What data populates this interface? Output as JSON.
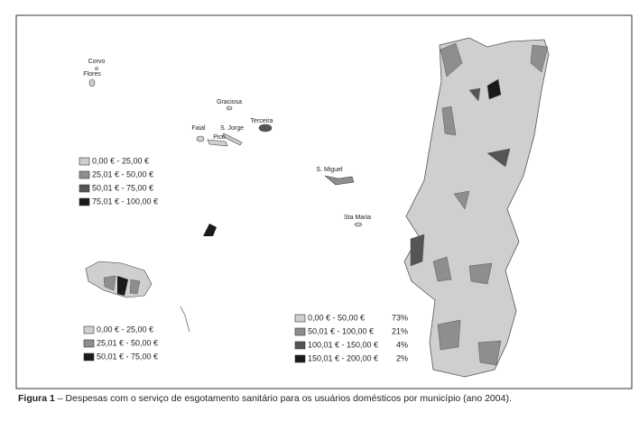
{
  "islands": [
    "Corvo",
    "Flores",
    "Graciosa",
    "Faial",
    "S. Jorge",
    "Terceira",
    "Pico",
    "S. Miguel",
    "Sta Maria"
  ],
  "azores_legend": [
    {
      "label": "0,00 € - 25,00 €",
      "color": "#cfcfcf"
    },
    {
      "label": "25,01 € - 50,00 €",
      "color": "#8e8e8e"
    },
    {
      "label": "50,01 € - 75,00 €",
      "color": "#555555"
    },
    {
      "label": "75,01 € - 100,00 €",
      "color": "#1a1a1a"
    }
  ],
  "madeira_legend": [
    {
      "label": "0,00 € - 25,00 €",
      "color": "#cfcfcf"
    },
    {
      "label": "25,01 € - 50,00 €",
      "color": "#8e8e8e"
    },
    {
      "label": "50,01 € - 75,00 €",
      "color": "#1a1a1a"
    }
  ],
  "mainland_legend": [
    {
      "label": "0,00 € - 50,00 €",
      "share": "73%",
      "color": "#cfcfcf"
    },
    {
      "label": "50,01 € - 100,00 €",
      "share": "21%",
      "color": "#8e8e8e"
    },
    {
      "label": "100,01 € - 150,00 €",
      "share": "4%",
      "color": "#555555"
    },
    {
      "label": "150,01 € - 200,00 €",
      "share": "2%",
      "color": "#1a1a1a"
    }
  ],
  "caption": {
    "label": "Figura 1",
    "text": " – Despesas com o serviço de esgotamento sanitário para os usuários domésticos por município (ano 2004)."
  }
}
